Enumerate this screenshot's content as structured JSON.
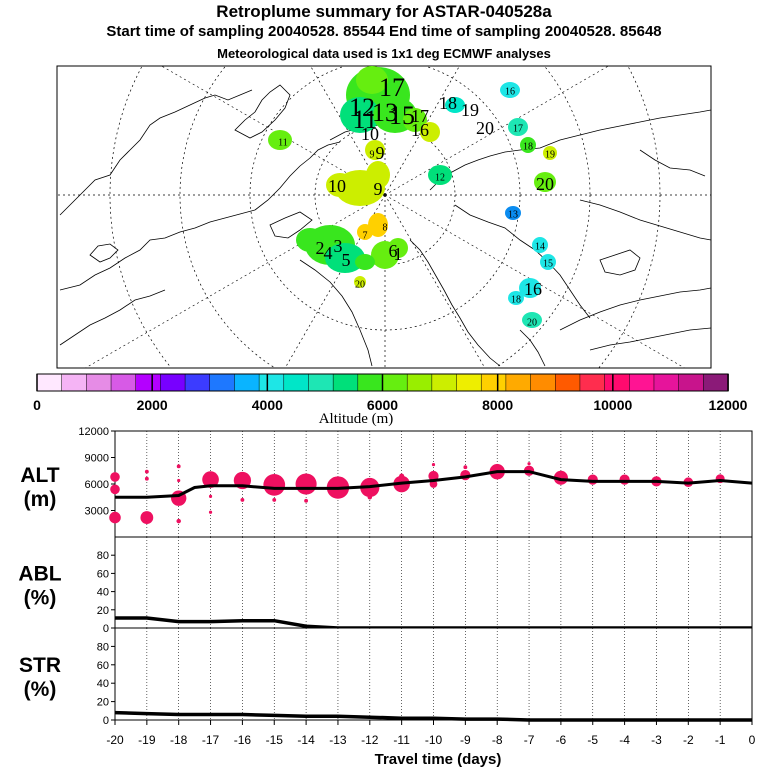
{
  "header": {
    "title": "Retroplume summary for ASTAR-040528a",
    "sampling": "Start time of sampling 20040528. 85544     End time of sampling 20040528. 85648",
    "met": "Meteorological data used is 1x1 deg ECMWF analyses"
  },
  "map": {
    "labels": [
      {
        "t": "17",
        "c": "#39e61e",
        "s": "l"
      },
      {
        "t": "12",
        "c": "#39e61e",
        "s": "l"
      },
      {
        "t": "11",
        "c": "#39e61e",
        "s": "l"
      },
      {
        "t": "13",
        "c": "#00e07a",
        "s": "l"
      },
      {
        "t": "15",
        "c": "#39e61e",
        "s": "l"
      },
      {
        "t": "17",
        "c": "#00e07a",
        "s": "m"
      },
      {
        "t": "18",
        "c": "#00e6c8",
        "s": "m"
      },
      {
        "t": "19",
        "c": "#00e6c8",
        "s": "m"
      },
      {
        "t": "20",
        "c": "#00e6c8",
        "s": "m"
      },
      {
        "t": "10",
        "c": "#39e61e",
        "s": "m"
      },
      {
        "t": "16",
        "c": "#66ee10",
        "s": "m"
      },
      {
        "t": "9",
        "c": "#ccee00",
        "s": "m"
      },
      {
        "t": "11",
        "c": "#66ee10",
        "s": "s"
      },
      {
        "t": "16",
        "c": "#1ee6e6",
        "s": "s"
      },
      {
        "t": "17",
        "c": "#1ee6b4",
        "s": "s"
      },
      {
        "t": "18",
        "c": "#39e61e",
        "s": "s"
      },
      {
        "t": "19",
        "c": "#ccee00",
        "s": "s"
      },
      {
        "t": "20",
        "c": "#66ee10",
        "s": "m"
      },
      {
        "t": "12",
        "c": "#00e07a",
        "s": "s"
      },
      {
        "t": "13",
        "c": "#0a8cf0",
        "s": "s"
      },
      {
        "t": "14",
        "c": "#1ee6e6",
        "s": "s"
      },
      {
        "t": "15",
        "c": "#1ee6e6",
        "s": "s"
      },
      {
        "t": "16",
        "c": "#1ee6e6",
        "s": "m"
      },
      {
        "t": "18",
        "c": "#1ee6e6",
        "s": "s"
      },
      {
        "t": "20",
        "c": "#1ee6b4",
        "s": "s"
      },
      {
        "t": "10",
        "c": "#ccee00",
        "s": "m"
      },
      {
        "t": "9",
        "c": "#ccee00",
        "s": "m"
      },
      {
        "t": "8",
        "c": "#ffd000",
        "s": "s"
      },
      {
        "t": "7",
        "c": "#ffd000",
        "s": "s"
      },
      {
        "t": "6",
        "c": "#66ee10",
        "s": "m"
      },
      {
        "t": "5",
        "c": "#39e61e",
        "s": "m"
      },
      {
        "t": "4",
        "c": "#39e61e",
        "s": "m"
      },
      {
        "t": "3",
        "c": "#39e61e",
        "s": "m"
      },
      {
        "t": "2",
        "c": "#39e61e",
        "s": "m"
      },
      {
        "t": "1",
        "c": "#66ee10",
        "s": "m"
      },
      {
        "t": "20",
        "c": "#ccee00",
        "s": "s"
      },
      {
        "t": "9",
        "c": "#ccee00",
        "s": "s"
      }
    ]
  },
  "colorbar": {
    "ticks": [
      "0",
      "2000",
      "4000",
      "6000",
      "8000",
      "10000",
      "12000"
    ],
    "label": "Altitude (m)",
    "colors": [
      "#ffe8ff",
      "#f5b4f5",
      "#e68ce6",
      "#d75ae6",
      "#b400ff",
      "#7800ff",
      "#3c3cff",
      "#1e78ff",
      "#0ab4ff",
      "#1ee6e6",
      "#00e6c8",
      "#1ee6b4",
      "#00e07a",
      "#39e61e",
      "#66ee10",
      "#99ee00",
      "#ccee00",
      "#eeee00",
      "#ffd000",
      "#ffaa00",
      "#ff8c00",
      "#ff5a00",
      "#ff2d4e",
      "#ff0a6e",
      "#ff1493",
      "#e6149b",
      "#c8148c",
      "#8b1a78"
    ]
  },
  "chart_data": [
    {
      "type": "scatter",
      "title": "ALT (m)",
      "ylabel": "ALT (m)",
      "ylim": [
        0,
        12000
      ],
      "yticks": [
        "12000",
        "9000",
        "6000",
        "3000"
      ],
      "line": {
        "x": [
          -20,
          -19,
          -18,
          -17.5,
          -17,
          -16,
          -15,
          -14,
          -13,
          -12,
          -11,
          -10,
          -9,
          -8,
          -7,
          -6,
          -5,
          -4,
          -3,
          -2,
          -1,
          0
        ],
        "y": [
          4500,
          4500,
          4700,
          5600,
          5800,
          5800,
          5500,
          5500,
          5500,
          5700,
          6100,
          6400,
          6800,
          7400,
          7400,
          6500,
          6300,
          6300,
          6300,
          6100,
          6400,
          6100
        ]
      },
      "points": [
        {
          "x": -20,
          "y": 6800,
          "s": 1.5
        },
        {
          "x": -20,
          "y": 5400,
          "s": 1.5
        },
        {
          "x": -20,
          "y": 2200,
          "s": 1.8
        },
        {
          "x": -19,
          "y": 7400,
          "s": 0.6
        },
        {
          "x": -19,
          "y": 6600,
          "s": 0.6
        },
        {
          "x": -19,
          "y": 2200,
          "s": 2
        },
        {
          "x": -18,
          "y": 8000,
          "s": 0.6
        },
        {
          "x": -18,
          "y": 6400,
          "s": 0.5
        },
        {
          "x": -18,
          "y": 4400,
          "s": 2.4
        },
        {
          "x": -18,
          "y": 1800,
          "s": 0.7
        },
        {
          "x": -17,
          "y": 6500,
          "s": 2.6
        },
        {
          "x": -17,
          "y": 4600,
          "s": 0.5
        },
        {
          "x": -17,
          "y": 2800,
          "s": 0.5
        },
        {
          "x": -16,
          "y": 6400,
          "s": 2.7
        },
        {
          "x": -16,
          "y": 4200,
          "s": 0.6
        },
        {
          "x": -15,
          "y": 5900,
          "s": 3.4
        },
        {
          "x": -15,
          "y": 4200,
          "s": 0.6
        },
        {
          "x": -14,
          "y": 6000,
          "s": 3.3
        },
        {
          "x": -14,
          "y": 4100,
          "s": 0.6
        },
        {
          "x": -13,
          "y": 5600,
          "s": 3.5
        },
        {
          "x": -12,
          "y": 5600,
          "s": 3
        },
        {
          "x": -12,
          "y": 4500,
          "s": 0.7
        },
        {
          "x": -11,
          "y": 6000,
          "s": 2.6
        },
        {
          "x": -11,
          "y": 6900,
          "s": 0.8
        },
        {
          "x": -10,
          "y": 6900,
          "s": 1.6
        },
        {
          "x": -10,
          "y": 6000,
          "s": 1.2
        },
        {
          "x": -10,
          "y": 8200,
          "s": 0.5
        },
        {
          "x": -9,
          "y": 7000,
          "s": 1.6
        },
        {
          "x": -9,
          "y": 7900,
          "s": 0.6
        },
        {
          "x": -8,
          "y": 7400,
          "s": 2.4
        },
        {
          "x": -8,
          "y": 8100,
          "s": 0.5
        },
        {
          "x": -7,
          "y": 7500,
          "s": 1.6
        },
        {
          "x": -7,
          "y": 8300,
          "s": 0.5
        },
        {
          "x": -6,
          "y": 6700,
          "s": 2.2
        },
        {
          "x": -5,
          "y": 6500,
          "s": 1.6
        },
        {
          "x": -4,
          "y": 6500,
          "s": 1.6
        },
        {
          "x": -3,
          "y": 6300,
          "s": 1.6
        },
        {
          "x": -2,
          "y": 6200,
          "s": 1.5
        },
        {
          "x": -1,
          "y": 6600,
          "s": 1.4
        }
      ]
    },
    {
      "type": "line",
      "title": "ABL (%)",
      "ylabel": "ABL (%)",
      "ylim": [
        0,
        100
      ],
      "yticks": [
        "80",
        "60",
        "40",
        "20",
        "0"
      ],
      "x": [
        -20,
        -19,
        -18,
        -17,
        -16,
        -15,
        -14,
        -13,
        -12,
        -11,
        -10,
        -9,
        -8,
        -7,
        -6,
        -5,
        -4,
        -3,
        -2,
        -1,
        0
      ],
      "y": [
        11,
        11,
        7,
        7,
        8,
        8,
        2,
        0,
        0,
        0,
        0,
        0,
        0,
        0,
        0,
        0,
        0,
        0,
        0,
        0,
        0
      ]
    },
    {
      "type": "line",
      "title": "STR (%)",
      "ylabel": "STR (%)",
      "ylim": [
        0,
        100
      ],
      "yticks": [
        "80",
        "60",
        "40",
        "20",
        "0"
      ],
      "x": [
        -20,
        -19,
        -18,
        -17,
        -16,
        -15,
        -14,
        -13,
        -12,
        -11,
        -10,
        -9,
        -8,
        -7,
        -6,
        -5,
        -4,
        -3,
        -2,
        -1,
        0
      ],
      "y": [
        8,
        7,
        6,
        6,
        6,
        5,
        4,
        4,
        3,
        2,
        2,
        1,
        1,
        0,
        0,
        0,
        0,
        0,
        0,
        0,
        0
      ]
    }
  ],
  "xaxis": {
    "ticks": [
      "-20",
      "-19",
      "-18",
      "-17",
      "-16",
      "-15",
      "-14",
      "-13",
      "-12",
      "-11",
      "-10",
      "-9",
      "-8",
      "-7",
      "-6",
      "-5",
      "-4",
      "-3",
      "-2",
      "-1",
      "0"
    ],
    "label": "Travel time (days)"
  },
  "colors": {
    "marker": "#ee1060",
    "line": "#000000"
  }
}
